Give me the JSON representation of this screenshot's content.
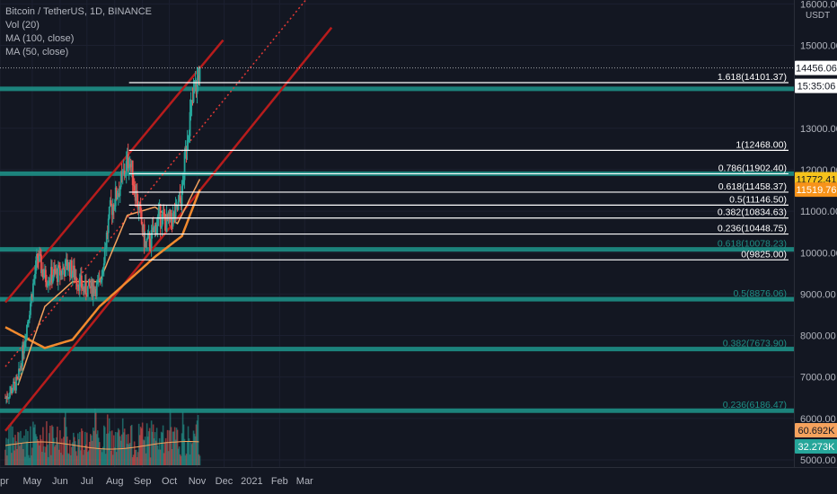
{
  "legend": {
    "symbol": "Bitcoin / TetherUS, 1D, BINANCE",
    "vol": "Vol (20)",
    "ma100": "MA (100, close)",
    "ma50": "MA (50, close)"
  },
  "price_axis": {
    "currency": "USDT",
    "ticks": [
      "16000.00",
      "15000.00",
      "13000.00",
      "12000.00",
      "11000.00",
      "10000.00",
      "9000.00",
      "8000.00",
      "7000.00",
      "6000.00",
      "5000.00"
    ]
  },
  "time_axis": {
    "labels": [
      "pr",
      "May",
      "Jun",
      "Jul",
      "Aug",
      "Sep",
      "Oct",
      "Nov",
      "Dec",
      "2021",
      "Feb",
      "Mar"
    ]
  },
  "badges": [
    {
      "text": "14456.06",
      "bg": "#ffffff",
      "fg": "#131722"
    },
    {
      "text": "15:35:06",
      "bg": "#ffffff",
      "fg": "#131722"
    },
    {
      "text": "11772.41",
      "bg": "#f5c21b",
      "fg": "#131722"
    },
    {
      "text": "11519.76",
      "bg": "#f7931a",
      "fg": "#ffffff"
    },
    {
      "text": "60.692K",
      "bg": "#f5a25d",
      "fg": "#131722"
    },
    {
      "text": "32.273K",
      "bg": "#26a69a",
      "fg": "#ffffff"
    }
  ],
  "fib_extension": [
    {
      "label": "1.618(14101.37)",
      "price": 14101.37
    },
    {
      "label": "1(12468.00)",
      "price": 12468.0
    },
    {
      "label": "0.786(11902.40)",
      "price": 11902.4
    },
    {
      "label": "0.618(11458.37)",
      "price": 11458.37
    },
    {
      "label": "0.5(11146.50)",
      "price": 11146.5
    },
    {
      "label": "0.382(10834.63)",
      "price": 10834.63
    },
    {
      "label": "0.236(10448.75)",
      "price": 10448.75
    },
    {
      "label": "0(9825.00)",
      "price": 9825.0
    }
  ],
  "fib_retracement": [
    {
      "label": "0.618(10078.23)",
      "price": 10078.23
    },
    {
      "label": "0.5(8876.06)",
      "price": 8876.06
    },
    {
      "label": "0.382(7673.90)",
      "price": 7673.9
    },
    {
      "label": "0.236(6186.47)",
      "price": 6186.47
    }
  ],
  "colors": {
    "background": "#131722",
    "up": "#26a69a",
    "down": "#ef5350",
    "channel": "#b71c1c",
    "teal_level": "#1e8f86",
    "ma100": "#f28a2e",
    "ma50": "#f5a25d"
  },
  "chart_data": {
    "type": "candlestick",
    "x_range": [
      "2020-04-01",
      "2021-03-31"
    ],
    "y_range": [
      5000,
      16000
    ],
    "horizontal_levels": [
      14101.37,
      12468,
      11902.4,
      11458.37,
      11146.5,
      10834.63,
      10448.75,
      9825,
      10078.23,
      8876.06,
      7673.9,
      6186.47
    ],
    "price_points": [
      [
        "2020-04-01",
        6500
      ],
      [
        "2020-04-15",
        6900
      ],
      [
        "2020-04-29",
        8800
      ],
      [
        "2020-05-07",
        9900
      ],
      [
        "2020-05-15",
        9400
      ],
      [
        "2020-05-31",
        9500
      ],
      [
        "2020-06-10",
        9700
      ],
      [
        "2020-06-28",
        9100
      ],
      [
        "2020-07-15",
        9200
      ],
      [
        "2020-07-27",
        11000
      ],
      [
        "2020-08-10",
        11800
      ],
      [
        "2020-08-17",
        12300
      ],
      [
        "2020-08-25",
        11400
      ],
      [
        "2020-09-04",
        10200
      ],
      [
        "2020-09-10",
        10300
      ],
      [
        "2020-09-20",
        10900
      ],
      [
        "2020-09-28",
        10700
      ],
      [
        "2020-10-08",
        10900
      ],
      [
        "2020-10-15",
        11400
      ],
      [
        "2020-10-21",
        12900
      ],
      [
        "2020-10-27",
        13600
      ],
      [
        "2020-11-04",
        14456
      ]
    ],
    "ma100": [
      [
        "2020-04-01",
        8200
      ],
      [
        "2020-05-15",
        7700
      ],
      [
        "2020-06-15",
        7900
      ],
      [
        "2020-07-15",
        8700
      ],
      [
        "2020-08-15",
        9300
      ],
      [
        "2020-09-15",
        9900
      ],
      [
        "2020-10-15",
        10400
      ],
      [
        "2020-11-04",
        11520
      ]
    ],
    "ma50": [
      [
        "2020-04-15",
        6800
      ],
      [
        "2020-05-15",
        8700
      ],
      [
        "2020-06-15",
        9300
      ],
      [
        "2020-07-15",
        9300
      ],
      [
        "2020-08-15",
        10900
      ],
      [
        "2020-09-15",
        11100
      ],
      [
        "2020-10-10",
        10700
      ],
      [
        "2020-11-04",
        11772
      ]
    ],
    "latest_close": 14456.06,
    "volume_latest": [
      "60.692K",
      "32.273K"
    ]
  }
}
